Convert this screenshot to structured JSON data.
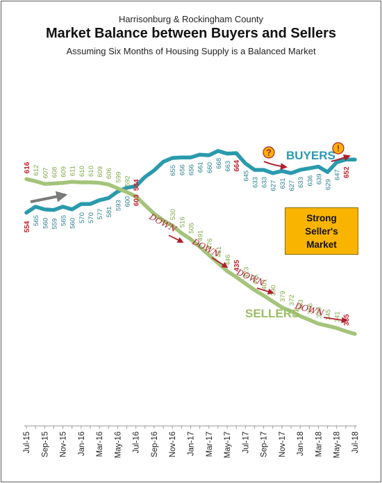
{
  "chart_data": {
    "type": "line",
    "supertitle": "Harrisonburg & Rockingham County",
    "title": "Market Balance between Buyers and Sellers",
    "subtitle": "Assuming Six Months of Housing Supply is a Balanced Market",
    "x": [
      "Jul-15",
      "Aug-15",
      "Sep-15",
      "Oct-15",
      "Nov-15",
      "Dec-15",
      "Jan-16",
      "Feb-16",
      "Mar-16",
      "Apr-16",
      "May-16",
      "Jun-16",
      "Jul-16",
      "Aug-16",
      "Sep-16",
      "Oct-16",
      "Nov-16",
      "Dec-16",
      "Jan-17",
      "Feb-17",
      "Mar-17",
      "Apr-17",
      "May-17",
      "Jun-17",
      "Jul-17",
      "Aug-17",
      "Sep-17",
      "Oct-17",
      "Nov-17",
      "Dec-17",
      "Jan-18",
      "Feb-18",
      "Mar-18",
      "Apr-18",
      "May-18",
      "Jun-18",
      "Jul-18"
    ],
    "tick_labels": [
      "Jul-15",
      "Sep-15",
      "Nov-15",
      "Jan-16",
      "Mar-16",
      "May-16",
      "Jul-16",
      "Sep-16",
      "Nov-16",
      "Jan-17",
      "Mar-17",
      "May-17",
      "Jul-17",
      "Sep-17",
      "Nov-17",
      "Jan-18",
      "Mar-18",
      "May-18",
      "Jul-18"
    ],
    "series": [
      {
        "name": "BUYERS",
        "color": "#2a9aad",
        "values": [
          554,
          565,
          560,
          559,
          565,
          560,
          570,
          570,
          577,
          581,
          593,
          600,
          603,
          620,
          632,
          648,
          655,
          656,
          656,
          661,
          660,
          668,
          663,
          664,
          645,
          633,
          633,
          627,
          631,
          627,
          633,
          636,
          639,
          629,
          647,
          652,
          652
        ],
        "value_labels": [
          "554",
          "565",
          "560",
          "559",
          "565",
          "560",
          "570",
          "570",
          "577",
          "581",
          "593",
          "600",
          "603",
          "",
          "",
          "",
          "655",
          "656",
          "656",
          "661",
          "660",
          "668",
          "663",
          "664",
          "645",
          "633",
          "633",
          "627",
          "631",
          "627",
          "633",
          "636",
          "639",
          "629",
          "647",
          "652",
          ""
        ],
        "highlight": {
          "0": true,
          "12": true,
          "23": true,
          "35": true
        }
      },
      {
        "name": "SELLERS",
        "color": "#a4c47a",
        "values": [
          616,
          612,
          607,
          608,
          609,
          611,
          610,
          610,
          609,
          606,
          599,
          592,
          584,
          568,
          552,
          540,
          530,
          516,
          505,
          491,
          476,
          461,
          446,
          435,
          423,
          411,
          401,
          390,
          379,
          372,
          363,
          356,
          349,
          345,
          341,
          335,
          330
        ],
        "value_labels": [
          "616",
          "612",
          "607",
          "608",
          "609",
          "611",
          "610",
          "610",
          "609",
          "606",
          "599",
          "592",
          "584",
          "",
          "",
          "",
          "530",
          "516",
          "505",
          "491",
          "476",
          "461",
          "446",
          "435",
          "423",
          "411",
          "401",
          "390",
          "379",
          "372",
          "363",
          "356",
          "349",
          "345",
          "341",
          "335",
          ""
        ],
        "highlight": {
          "0": true,
          "12": true,
          "23": true,
          "35": true
        }
      }
    ],
    "annotations": {
      "down_word": "DOWN",
      "question_mark": "?",
      "exclamation_mark": "!",
      "callout": "Strong\nSeller's\nMarket"
    },
    "label_colors": {
      "buyers_label": "#2a9aad",
      "sellers_label": "#9bbd63",
      "highlight": "#c0232c",
      "buyers_values": "#2a7f8f",
      "sellers_values": "#7ea745",
      "arrow_red": "#b01e2b",
      "arrow_gray": "#7a7a7a"
    },
    "grid": false,
    "legend": "inline labels"
  }
}
